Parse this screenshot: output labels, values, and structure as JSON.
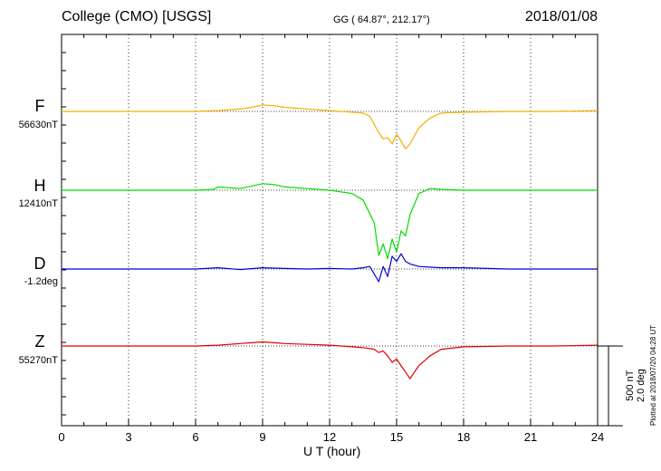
{
  "header": {
    "title": "College (CMO)  [USGS]",
    "coords": "GG ( 64.87°, 212.17°)",
    "date": "2018/01/08"
  },
  "footer": {
    "xlabel": "U T (hour)",
    "scale_nt": "500 nT",
    "scale_deg": "2.0 deg",
    "plotted": "Plotted at 2018/07/20 04:28 UT"
  },
  "channels": [
    {
      "name": "F",
      "base": "56630nT",
      "color": "#f0b000"
    },
    {
      "name": "H",
      "base": "12410nT",
      "color": "#00dd00"
    },
    {
      "name": "D",
      "base": "-1.2deg",
      "color": "#0000dd"
    },
    {
      "name": "Z",
      "base": "55270nT",
      "color": "#dd0000"
    }
  ],
  "chart_data": {
    "type": "line",
    "title": "College (CMO)  [USGS]",
    "xlabel": "U T (hour)",
    "xlim": [
      0,
      24
    ],
    "xticks": [
      0,
      3,
      6,
      9,
      12,
      15,
      18,
      21,
      24
    ],
    "grid": true,
    "scale": "500 nT / 2.0 deg per scale bar",
    "series": [
      {
        "name": "F",
        "baseline": "56630nT",
        "x": [
          0,
          2,
          4,
          6,
          7,
          8,
          8.5,
          9,
          9.5,
          10,
          11,
          12,
          12.5,
          13,
          13.5,
          13.8,
          14,
          14.2,
          14.4,
          14.6,
          14.8,
          15,
          15.2,
          15.4,
          15.6,
          15.8,
          16,
          16.5,
          17,
          18,
          20,
          22,
          24
        ],
        "y": [
          0,
          0,
          0,
          0,
          5,
          15,
          25,
          40,
          35,
          25,
          15,
          5,
          0,
          -5,
          -10,
          -30,
          -80,
          -130,
          -170,
          -160,
          -200,
          -140,
          -180,
          -230,
          -200,
          -150,
          -100,
          -40,
          -10,
          -5,
          0,
          0,
          5
        ]
      },
      {
        "name": "H",
        "baseline": "12410nT",
        "x": [
          0,
          2,
          4,
          6,
          6.8,
          7,
          8,
          9,
          9.5,
          10,
          11,
          12,
          12.5,
          13,
          13.5,
          14,
          14.2,
          14.4,
          14.6,
          14.8,
          15,
          15.2,
          15.4,
          15.6,
          16,
          16.5,
          17,
          18,
          20,
          22,
          24
        ],
        "y": [
          0,
          0,
          0,
          0,
          5,
          20,
          10,
          40,
          35,
          20,
          10,
          0,
          -10,
          -20,
          -60,
          -200,
          -400,
          -330,
          -420,
          -300,
          -380,
          -250,
          -280,
          -150,
          -20,
          10,
          5,
          0,
          0,
          0,
          0
        ]
      },
      {
        "name": "D",
        "baseline": "-1.2deg",
        "x": [
          0,
          2,
          4,
          6,
          7,
          8,
          9,
          10,
          11,
          12,
          13,
          13.5,
          13.8,
          14,
          14.2,
          14.4,
          14.6,
          14.8,
          15,
          15.2,
          15.4,
          15.6,
          16,
          17,
          18,
          20,
          22,
          24
        ],
        "y": [
          0,
          0,
          0,
          0,
          0.05,
          -0.02,
          0.05,
          0.02,
          0.0,
          0.02,
          0.0,
          0.05,
          0.1,
          -0.2,
          -0.5,
          0.1,
          -0.3,
          0.5,
          0.3,
          0.6,
          0.3,
          0.2,
          0.1,
          0.05,
          0.05,
          0.0,
          0.0,
          0.0
        ]
      },
      {
        "name": "Z",
        "baseline": "55270nT",
        "x": [
          0,
          2,
          4,
          6,
          7,
          8,
          8.5,
          9,
          9.5,
          10,
          11,
          12,
          13,
          13.5,
          14,
          14.2,
          14.4,
          14.6,
          14.8,
          15,
          15.2,
          15.4,
          15.6,
          15.8,
          16,
          16.5,
          17,
          18,
          20,
          22,
          24
        ],
        "y": [
          0,
          0,
          0,
          0,
          5,
          15,
          20,
          25,
          20,
          15,
          10,
          5,
          -5,
          -10,
          -20,
          -40,
          -30,
          -60,
          -100,
          -80,
          -120,
          -160,
          -200,
          -160,
          -120,
          -60,
          -20,
          -5,
          0,
          0,
          5
        ]
      }
    ]
  }
}
